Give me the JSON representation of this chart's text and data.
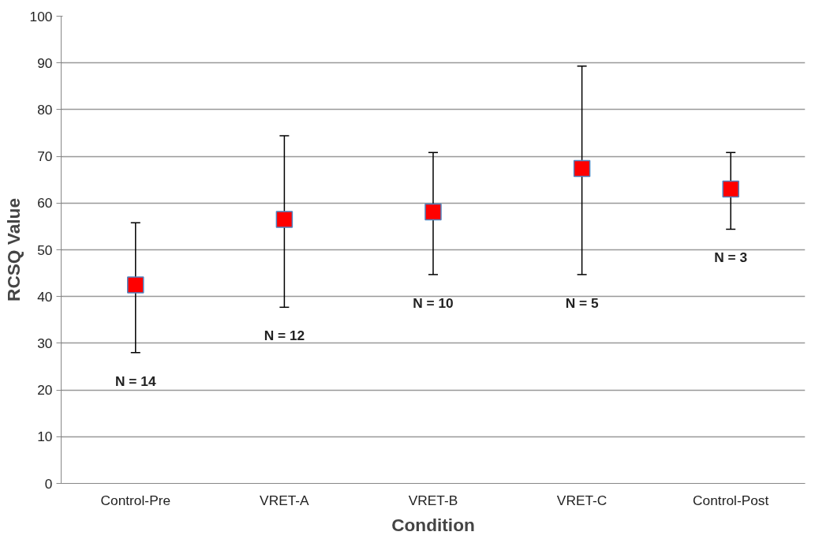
{
  "chart_data": {
    "type": "scatter",
    "xlabel": "Condition",
    "ylabel": "RCSQ Value",
    "categories": [
      "Control-Pre",
      "VRET-A",
      "VRET-B",
      "VRET-C",
      "Control-Post"
    ],
    "series": [
      {
        "color": "#ff0000",
        "values": [
          42.5,
          56.5,
          58.1,
          67.4,
          63.0
        ],
        "errors": [
          [
            28.0,
            55.8
          ],
          [
            37.7,
            74.4
          ],
          [
            44.7,
            70.8
          ],
          [
            44.7,
            89.3
          ],
          [
            54.4,
            70.8
          ]
        ]
      }
    ],
    "annotations": [
      "N = 14",
      "N = 12",
      "N = 10",
      "N = 5",
      "N = 3"
    ],
    "ylim": [
      0,
      100
    ],
    "yticks": [
      0,
      10,
      20,
      30,
      40,
      50,
      60,
      70,
      80,
      90,
      100
    ],
    "grid": "y",
    "marker": "square"
  }
}
